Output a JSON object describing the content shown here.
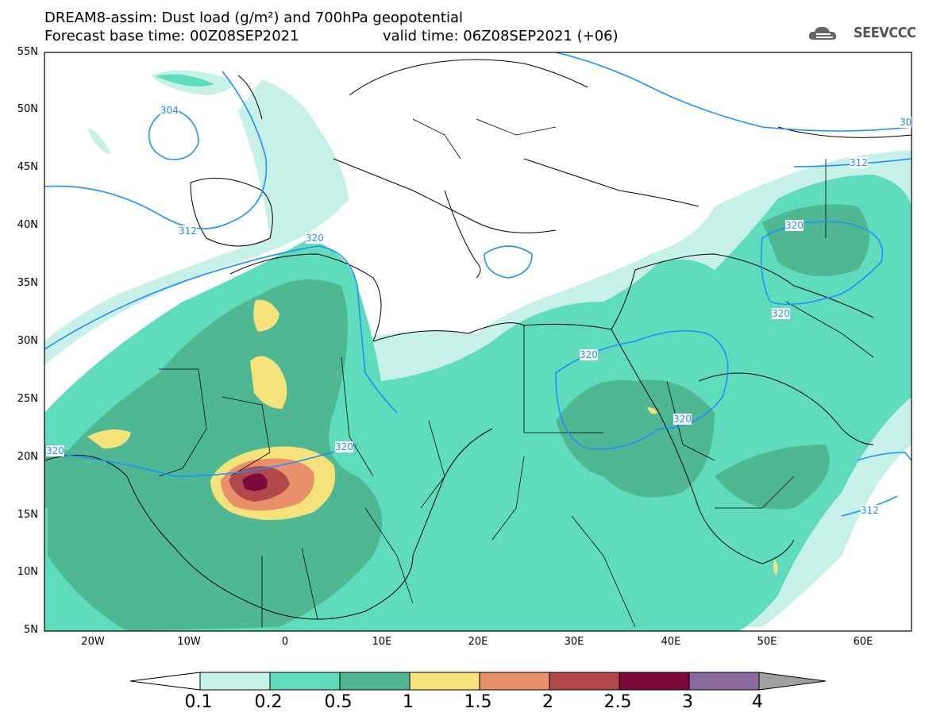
{
  "title": {
    "line1": "DREAM8-assim: Dust load (g/m²) and 700hPa geopotential",
    "line2": "Forecast base time: 00Z08SEP2021",
    "valid": "valid time: 06Z08SEP2021 (+06)"
  },
  "logo": {
    "text": "SEEVCCC",
    "icon": "cloud-icon"
  },
  "axes": {
    "lat_labels": [
      "55N",
      "50N",
      "45N",
      "40N",
      "35N",
      "30N",
      "25N",
      "20N",
      "15N",
      "10N",
      "5N"
    ],
    "lon_labels": [
      "20W",
      "10W",
      "0",
      "10E",
      "20E",
      "30E",
      "40E",
      "50E",
      "60E"
    ]
  },
  "contours": {
    "labels": [
      "304",
      "312",
      "320",
      "320",
      "320",
      "320",
      "320",
      "320",
      "320",
      "312",
      "312",
      "30"
    ]
  },
  "colorbar": {
    "ticks": [
      "0.1",
      "0.2",
      "0.5",
      "1",
      "1.5",
      "2",
      "2.5",
      "3",
      "4"
    ],
    "colors": [
      "#c6f0e8",
      "#5fdcbc",
      "#4fb892",
      "#f5e27a",
      "#e8906a",
      "#b0484c",
      "#7a0a3a",
      "#8a6aa0"
    ],
    "extend_min_color": "#ffffff",
    "extend_max_color": "#a0a0a0"
  },
  "map_colors": {
    "contour": "#1e90ff",
    "border": "#000000"
  }
}
